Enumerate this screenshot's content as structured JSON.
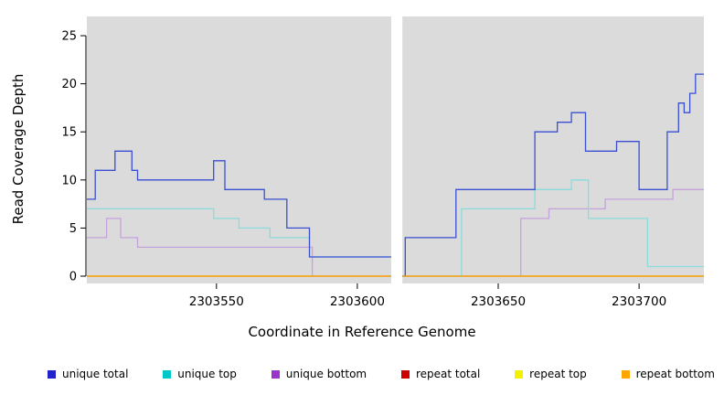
{
  "chart_data": {
    "type": "line",
    "subtype": "step-coverage",
    "title": "",
    "xlabel": "Coordinate in Reference Genome",
    "ylabel": "Read Coverage Depth",
    "xlim": [
      2303504,
      2303723
    ],
    "ylim": [
      0,
      27
    ],
    "x_ticks": [
      2303550,
      2303600,
      2303650,
      2303700
    ],
    "y_ticks": [
      0,
      5,
      10,
      15,
      20,
      25
    ],
    "panel_color": "#DBDBDB",
    "gap_x": [
      2303612,
      2303616
    ],
    "legend_position": "bottom",
    "grid": false,
    "series": [
      {
        "key": "repeat-total",
        "label": "repeat total",
        "line_color": "#CC2222",
        "segments": [
          {
            "steps": [
              [
                2303504,
                0
              ]
            ],
            "end": 2303612
          },
          {
            "steps": [
              [
                2303616,
                0
              ]
            ],
            "end": 2303723
          }
        ]
      },
      {
        "key": "repeat-top",
        "label": "repeat top",
        "line_color": "#EDED00",
        "segments": [
          {
            "steps": [
              [
                2303504,
                0
              ]
            ],
            "end": 2303612
          },
          {
            "steps": [
              [
                2303616,
                0
              ]
            ],
            "end": 2303723
          }
        ]
      },
      {
        "key": "unique-bottom",
        "label": "unique bottom",
        "line_color": "#C6A2DC",
        "segments": [
          {
            "steps": [
              [
                2303504,
                4
              ],
              [
                2303511,
                6
              ],
              [
                2303516,
                4
              ],
              [
                2303522,
                3
              ],
              [
                2303584,
                0
              ]
            ],
            "end": 2303612
          },
          {
            "steps": [
              [
                2303616,
                0
              ],
              [
                2303658,
                6
              ],
              [
                2303668,
                7
              ],
              [
                2303688,
                8
              ],
              [
                2303712,
                9
              ]
            ],
            "end": 2303723
          }
        ]
      },
      {
        "key": "unique-top",
        "label": "unique top",
        "line_color": "#8ADBDB",
        "segments": [
          {
            "steps": [
              [
                2303504,
                7
              ],
              [
                2303549,
                6
              ],
              [
                2303558,
                5
              ],
              [
                2303569,
                4
              ],
              [
                2303583,
                2
              ]
            ],
            "end": 2303612
          },
          {
            "steps": [
              [
                2303616,
                0
              ],
              [
                2303637,
                7
              ],
              [
                2303663,
                9
              ],
              [
                2303676,
                10
              ],
              [
                2303682,
                6
              ],
              [
                2303703,
                1
              ]
            ],
            "end": 2303723
          }
        ]
      },
      {
        "key": "unique-total",
        "label": "unique total",
        "line_color": "#3A4FD2",
        "segments": [
          {
            "steps": [
              [
                2303504,
                8
              ],
              [
                2303507,
                11
              ],
              [
                2303514,
                13
              ],
              [
                2303520,
                11
              ],
              [
                2303522,
                10
              ],
              [
                2303549,
                12
              ],
              [
                2303553,
                9
              ],
              [
                2303567,
                8
              ],
              [
                2303575,
                5
              ],
              [
                2303583,
                2
              ]
            ],
            "end": 2303612
          },
          {
            "steps": [
              [
                2303616,
                0
              ],
              [
                2303617,
                4
              ],
              [
                2303635,
                9
              ],
              [
                2303663,
                15
              ],
              [
                2303671,
                16
              ],
              [
                2303676,
                17
              ],
              [
                2303681,
                13
              ],
              [
                2303692,
                14
              ],
              [
                2303700,
                9
              ],
              [
                2303710,
                15
              ],
              [
                2303714,
                18
              ],
              [
                2303716,
                17
              ],
              [
                2303718,
                19
              ],
              [
                2303720,
                21
              ]
            ],
            "end": 2303723
          }
        ]
      },
      {
        "key": "repeat-bottom",
        "label": "repeat bottom",
        "line_color": "#FFA500",
        "segments": [
          {
            "steps": [
              [
                2303504,
                0
              ]
            ],
            "end": 2303612
          },
          {
            "steps": [
              [
                2303616,
                0
              ]
            ],
            "end": 2303723
          }
        ]
      }
    ],
    "legend": [
      {
        "key": "unique-total",
        "label": "unique total",
        "color": "#2222CC"
      },
      {
        "key": "unique-top",
        "label": "unique top",
        "color": "#00C8C8"
      },
      {
        "key": "unique-bottom",
        "label": "unique bottom",
        "color": "#9933CC"
      },
      {
        "key": "repeat-total",
        "label": "repeat total",
        "color": "#CC0000"
      },
      {
        "key": "repeat-top",
        "label": "repeat top",
        "color": "#F2F200"
      },
      {
        "key": "repeat-bottom",
        "label": "repeat bottom",
        "color": "#FFA500"
      }
    ]
  }
}
